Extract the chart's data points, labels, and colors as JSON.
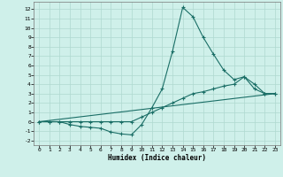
{
  "xlabel": "Humidex (Indice chaleur)",
  "bg_color": "#cff0ea",
  "line_color": "#1a6e66",
  "grid_color": "#aed8d0",
  "xlim": [
    -0.5,
    23.5
  ],
  "ylim": [
    -2.5,
    12.8
  ],
  "xticks": [
    0,
    1,
    2,
    3,
    4,
    5,
    6,
    7,
    8,
    9,
    10,
    11,
    12,
    13,
    14,
    15,
    16,
    17,
    18,
    19,
    20,
    21,
    22,
    23
  ],
  "yticks": [
    -2,
    -1,
    0,
    1,
    2,
    3,
    4,
    5,
    6,
    7,
    8,
    9,
    10,
    11,
    12
  ],
  "series1_x": [
    0,
    1,
    2,
    3,
    4,
    5,
    6,
    7,
    8,
    9,
    10,
    11,
    12,
    13,
    14,
    15,
    16,
    17,
    18,
    19,
    20,
    21,
    22,
    23
  ],
  "series1_y": [
    0.0,
    0.0,
    0.0,
    -0.3,
    -0.5,
    -0.6,
    -0.7,
    -1.1,
    -1.3,
    -1.4,
    -0.3,
    1.5,
    3.5,
    7.5,
    12.2,
    11.2,
    9.0,
    7.2,
    5.5,
    4.5,
    4.8,
    4.0,
    3.0,
    3.0
  ],
  "series2_x": [
    0,
    1,
    2,
    3,
    4,
    5,
    6,
    7,
    8,
    9,
    10,
    11,
    12,
    13,
    14,
    15,
    16,
    17,
    18,
    19,
    20,
    21,
    22,
    23
  ],
  "series2_y": [
    0.0,
    0.0,
    0.0,
    0.0,
    0.0,
    0.0,
    0.0,
    0.0,
    0.0,
    0.0,
    0.5,
    1.0,
    1.5,
    2.0,
    2.5,
    3.0,
    3.2,
    3.5,
    3.8,
    4.0,
    4.8,
    3.5,
    3.0,
    3.0
  ],
  "series3_x": [
    0,
    23
  ],
  "series3_y": [
    0.0,
    3.0
  ]
}
